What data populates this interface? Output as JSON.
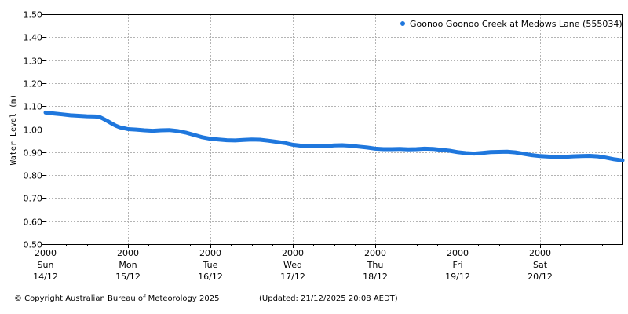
{
  "chart_data": {
    "type": "line",
    "ylabel": "Water Level (m)",
    "ylim": [
      0.5,
      1.5
    ],
    "yticks": [
      "0.50",
      "0.60",
      "0.70",
      "0.80",
      "0.90",
      "1.00",
      "1.10",
      "1.20",
      "1.30",
      "1.40",
      "1.50"
    ],
    "x_range_days": [
      0,
      7.0
    ],
    "xticks": [
      {
        "time": "2000",
        "day": "Sun",
        "date": "14/12"
      },
      {
        "time": "2000",
        "day": "Mon",
        "date": "15/12"
      },
      {
        "time": "2000",
        "day": "Tue",
        "date": "16/12"
      },
      {
        "time": "2000",
        "day": "Wed",
        "date": "17/12"
      },
      {
        "time": "2000",
        "day": "Thu",
        "date": "18/12"
      },
      {
        "time": "2000",
        "day": "Fri",
        "date": "19/12"
      },
      {
        "time": "2000",
        "day": "Sat",
        "date": "20/12"
      }
    ],
    "grid": true,
    "legend_position": "top-right",
    "series": [
      {
        "name": "Goonoo Goonoo Creek at Medows Lane (555034)",
        "color": "#1f77dd",
        "points": [
          [
            0.0,
            1.072
          ],
          [
            0.1,
            1.068
          ],
          [
            0.2,
            1.064
          ],
          [
            0.3,
            1.06
          ],
          [
            0.4,
            1.058
          ],
          [
            0.5,
            1.056
          ],
          [
            0.6,
            1.055
          ],
          [
            0.65,
            1.054
          ],
          [
            0.7,
            1.045
          ],
          [
            0.75,
            1.035
          ],
          [
            0.8,
            1.025
          ],
          [
            0.85,
            1.015
          ],
          [
            0.9,
            1.008
          ],
          [
            0.95,
            1.004
          ],
          [
            1.0,
            1.0
          ],
          [
            1.1,
            0.998
          ],
          [
            1.2,
            0.995
          ],
          [
            1.3,
            0.993
          ],
          [
            1.4,
            0.995
          ],
          [
            1.5,
            0.996
          ],
          [
            1.6,
            0.992
          ],
          [
            1.7,
            0.985
          ],
          [
            1.8,
            0.975
          ],
          [
            1.9,
            0.965
          ],
          [
            2.0,
            0.958
          ],
          [
            2.1,
            0.955
          ],
          [
            2.2,
            0.952
          ],
          [
            2.3,
            0.951
          ],
          [
            2.4,
            0.953
          ],
          [
            2.5,
            0.955
          ],
          [
            2.6,
            0.954
          ],
          [
            2.7,
            0.95
          ],
          [
            2.8,
            0.945
          ],
          [
            2.9,
            0.94
          ],
          [
            3.0,
            0.932
          ],
          [
            3.1,
            0.928
          ],
          [
            3.2,
            0.926
          ],
          [
            3.3,
            0.925
          ],
          [
            3.4,
            0.926
          ],
          [
            3.5,
            0.929
          ],
          [
            3.6,
            0.93
          ],
          [
            3.7,
            0.928
          ],
          [
            3.8,
            0.924
          ],
          [
            3.9,
            0.92
          ],
          [
            4.0,
            0.915
          ],
          [
            4.1,
            0.913
          ],
          [
            4.2,
            0.913
          ],
          [
            4.3,
            0.914
          ],
          [
            4.4,
            0.912
          ],
          [
            4.5,
            0.913
          ],
          [
            4.6,
            0.915
          ],
          [
            4.7,
            0.914
          ],
          [
            4.8,
            0.91
          ],
          [
            4.9,
            0.906
          ],
          [
            5.0,
            0.9
          ],
          [
            5.1,
            0.896
          ],
          [
            5.2,
            0.894
          ],
          [
            5.3,
            0.897
          ],
          [
            5.4,
            0.9
          ],
          [
            5.5,
            0.901
          ],
          [
            5.6,
            0.902
          ],
          [
            5.7,
            0.899
          ],
          [
            5.8,
            0.893
          ],
          [
            5.9,
            0.887
          ],
          [
            6.0,
            0.883
          ],
          [
            6.1,
            0.881
          ],
          [
            6.2,
            0.88
          ],
          [
            6.3,
            0.88
          ],
          [
            6.4,
            0.882
          ],
          [
            6.5,
            0.883
          ],
          [
            6.6,
            0.884
          ],
          [
            6.7,
            0.882
          ],
          [
            6.8,
            0.876
          ],
          [
            6.9,
            0.869
          ],
          [
            7.0,
            0.864
          ]
        ]
      }
    ]
  },
  "footer": {
    "copyright": "© Copyright Australian Bureau of Meteorology 2025",
    "updated": "(Updated: 21/12/2025 20:08 AEDT)"
  }
}
